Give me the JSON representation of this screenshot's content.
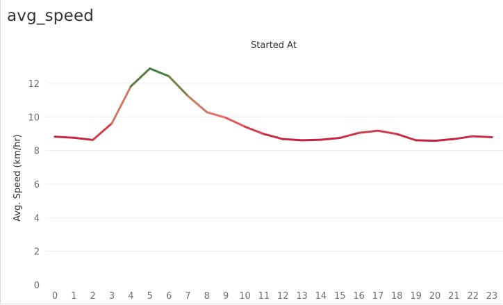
{
  "sheet": {
    "title": "avg_speed"
  },
  "chart_data": {
    "type": "line",
    "column_header": "Started At",
    "ylabel": "Avg. Speed (km/hr)",
    "xlabel": "",
    "ylim": [
      0,
      13.9
    ],
    "y_ticks": [
      0,
      2,
      4,
      6,
      8,
      10,
      12
    ],
    "x": [
      0,
      1,
      2,
      3,
      4,
      5,
      6,
      7,
      8,
      9,
      10,
      11,
      12,
      13,
      14,
      15,
      16,
      17,
      18,
      19,
      20,
      21,
      22,
      23
    ],
    "values": [
      8.82,
      8.76,
      8.63,
      9.62,
      11.82,
      12.88,
      12.42,
      11.25,
      10.28,
      9.95,
      9.42,
      8.98,
      8.68,
      8.61,
      8.64,
      8.75,
      9.05,
      9.18,
      8.98,
      8.61,
      8.58,
      8.68,
      8.85,
      8.79
    ],
    "grid": {
      "horizontal": true,
      "vertical": false
    },
    "color_scale": {
      "low": "#c2203f",
      "mid": "#ee7a68",
      "high": "#2f7d3a"
    }
  }
}
